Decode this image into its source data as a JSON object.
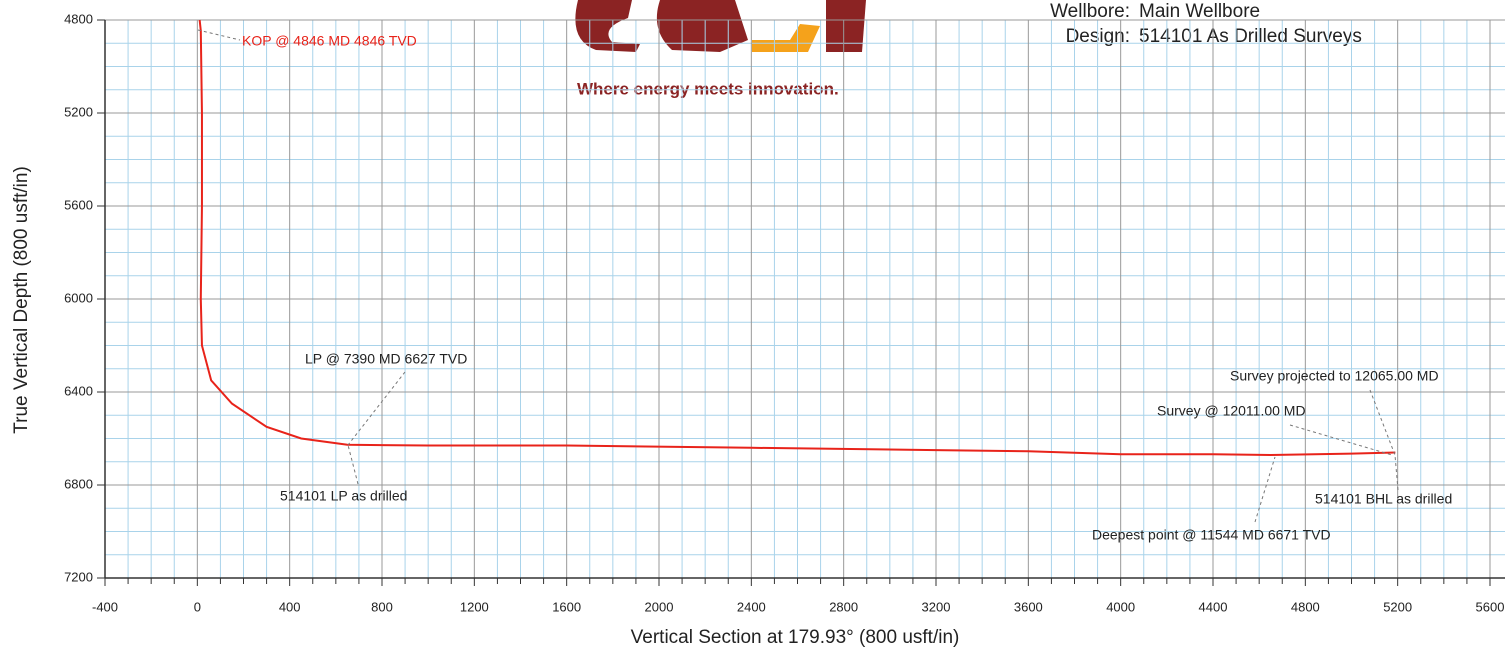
{
  "chart_data": {
    "type": "line",
    "header": [
      {
        "label": "Wellbore:",
        "value": "Main Wellbore"
      },
      {
        "label": "Design:",
        "value": "514101 As Drilled Surveys"
      }
    ],
    "tagline": "Where energy meets innovation.",
    "x_label": "Vertical Section at 179.93° (800 usft/in)",
    "y_label": "True Vertical Depth (800 usft/in)",
    "x": [
      10,
      15,
      20,
      20,
      15,
      20,
      60,
      150,
      300,
      450,
      650,
      1000,
      1600,
      2400,
      3200,
      3600,
      4000,
      4400,
      4650,
      5000,
      5190
    ],
    "values": [
      4800,
      4846,
      5200,
      5600,
      6000,
      6200,
      6350,
      6450,
      6550,
      6600,
      6627,
      6630,
      6630,
      6640,
      6650,
      6655,
      6668,
      6668,
      6671,
      6665,
      6660
    ],
    "color": "#e8231a",
    "xlim": [
      -400,
      5600
    ],
    "xticks": [
      -400,
      0,
      400,
      800,
      1200,
      1600,
      2000,
      2400,
      2800,
      3200,
      3600,
      4000,
      4400,
      4800,
      5200,
      5600
    ],
    "ylim": [
      4800,
      7200
    ],
    "yticks": [
      4800,
      5200,
      5600,
      6000,
      6400,
      6800,
      7200
    ],
    "y_inverted": true,
    "grid": true,
    "annotations": [
      "KOP @ 4846 MD 4846 TVD",
      "LP @ 7390 MD 6627 TVD",
      "514101 LP as drilled",
      "Survey projected to 12065.00 MD",
      "Survey @ 12011.00 MD",
      "514101 BHL as drilled",
      "Deepest point @ 11544 MD 6671 TVD"
    ]
  }
}
